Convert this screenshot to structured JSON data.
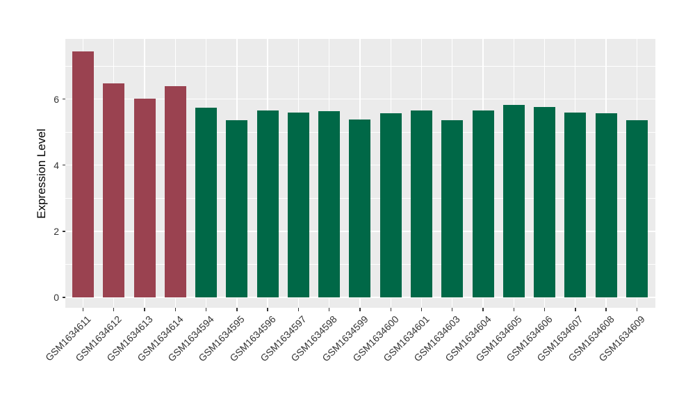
{
  "chart_data": {
    "type": "bar",
    "title": "",
    "xlabel": "",
    "ylabel": "Expression Level",
    "categories": [
      "GSM1634611",
      "GSM1634612",
      "GSM1634613",
      "GSM1634614",
      "GSM1634594",
      "GSM1634595",
      "GSM1634596",
      "GSM1634597",
      "GSM1634598",
      "GSM1634599",
      "GSM1634600",
      "GSM1634601",
      "GSM1634603",
      "GSM1634604",
      "GSM1634605",
      "GSM1634606",
      "GSM1634607",
      "GSM1634608",
      "GSM1634609"
    ],
    "values": [
      7.44,
      6.48,
      6.02,
      6.39,
      5.75,
      5.36,
      5.66,
      5.59,
      5.64,
      5.38,
      5.58,
      5.66,
      5.37,
      5.66,
      5.83,
      5.76,
      5.59,
      5.58,
      5.37
    ],
    "bar_colors": [
      "#9A4250",
      "#9A4250",
      "#9A4250",
      "#9A4250",
      "#006847",
      "#006847",
      "#006847",
      "#006847",
      "#006847",
      "#006847",
      "#006847",
      "#006847",
      "#006847",
      "#006847",
      "#006847",
      "#006847",
      "#006847",
      "#006847",
      "#006847"
    ],
    "palette": {
      "highlight": "#9A4250",
      "normal": "#006847"
    },
    "yticks": [
      0,
      2,
      4,
      6
    ],
    "minor_gridlines": [
      1,
      3,
      5,
      7
    ],
    "ylim": [
      0,
      7.82
    ],
    "grid": true,
    "legend": false,
    "panel_background": "#EBEBEB",
    "gridline_color": "#FFFFFF",
    "axis_text_color": "#333333"
  }
}
